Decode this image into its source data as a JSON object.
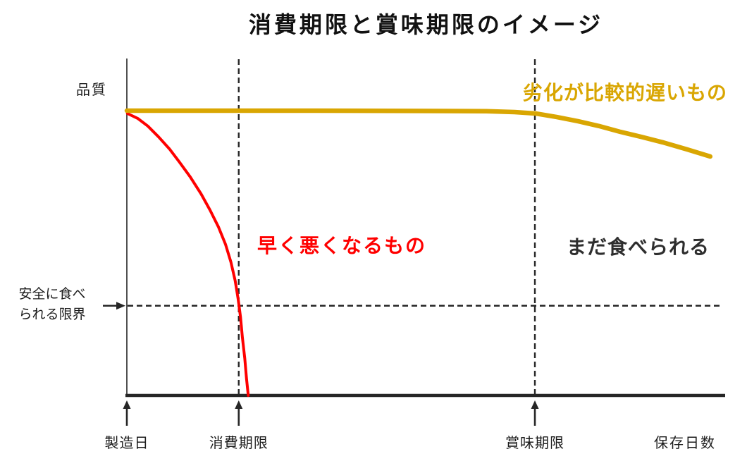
{
  "chart_data": {
    "type": "line",
    "title": "消費期限と賞味期限のイメージ",
    "xlabel": "保存日数",
    "ylabel": "品質",
    "xlim": [
      0,
      100
    ],
    "ylim": [
      0,
      100
    ],
    "grid": false,
    "legend": "inline-text-labels",
    "axis_color": "#262626",
    "x_unit_note": "x = percent of storage-days axis shown, y = relative quality (100 = initial quality)",
    "markers": [
      {
        "id": "manufacture",
        "label": "製造日",
        "x": 0,
        "dashed_line": false
      },
      {
        "id": "consume-by",
        "label": "消費期限",
        "x": 18.7,
        "dashed_line": true
      },
      {
        "id": "best-before",
        "label": "賞味期限",
        "x": 68.2,
        "dashed_line": true
      }
    ],
    "safety_limit": {
      "label": "安全に食べ\nられる限界",
      "y": 31.5
    },
    "series": [
      {
        "id": "fast-spoil",
        "name": "早く悪くなるもの",
        "color": "#ff0000",
        "stroke_width": 4,
        "points": [
          [
            0.1,
            99
          ],
          [
            1.8,
            97.3
          ],
          [
            3.5,
            94.6
          ],
          [
            5.3,
            90.8
          ],
          [
            7.1,
            86.6
          ],
          [
            8.8,
            81.9
          ],
          [
            10.6,
            76.7
          ],
          [
            12.4,
            70.8
          ],
          [
            13.9,
            65.1
          ],
          [
            15.3,
            59.2
          ],
          [
            16.5,
            53.0
          ],
          [
            17.4,
            46.8
          ],
          [
            18.1,
            40.3
          ],
          [
            18.6,
            33.9
          ],
          [
            19.0,
            27.5
          ],
          [
            19.3,
            20.5
          ],
          [
            19.7,
            13.1
          ],
          [
            20.0,
            5.9
          ],
          [
            20.3,
            0
          ]
        ]
      },
      {
        "id": "slow-decay",
        "name": "劣化が比較的遅いもの",
        "color": "#d9a602",
        "stroke_width": 6.5,
        "points": [
          [
            0,
            100
          ],
          [
            14.1,
            100
          ],
          [
            31.8,
            100
          ],
          [
            49.5,
            99.9
          ],
          [
            60.1,
            99.8
          ],
          [
            64.8,
            99.5
          ],
          [
            68.3,
            99.0
          ],
          [
            71.8,
            97.8
          ],
          [
            75.4,
            96.3
          ],
          [
            78.9,
            94.6
          ],
          [
            82.4,
            92.6
          ],
          [
            86.0,
            90.8
          ],
          [
            89.5,
            88.9
          ],
          [
            93.6,
            86.4
          ],
          [
            97.5,
            83.9
          ]
        ]
      }
    ],
    "annotations": [
      {
        "id": "still-edible",
        "text": "まだ食べられる",
        "color": "#2e2e2e"
      }
    ]
  }
}
